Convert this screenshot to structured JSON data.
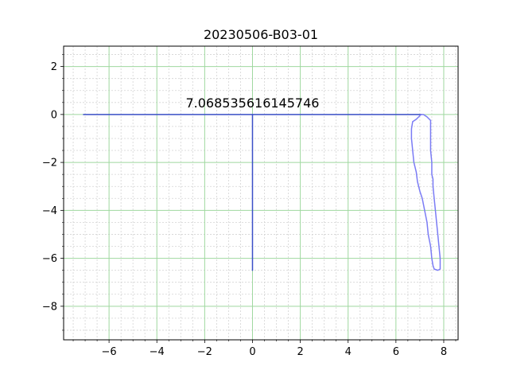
{
  "chart_data": {
    "type": "line",
    "title": "20230506-B03-01",
    "xlabel": "",
    "ylabel": "",
    "xlim": [
      -7.9,
      8.6
    ],
    "ylim": [
      -9.4,
      2.85
    ],
    "x_major_ticks": [
      -6,
      -4,
      -2,
      0,
      2,
      4,
      6,
      8
    ],
    "x_minor_step": 0.5,
    "y_major_ticks": [
      -8,
      -6,
      -4,
      -2,
      0,
      2
    ],
    "y_minor_step": 0.5,
    "grid": true,
    "major_grid_color": "#9fd89f",
    "minor_grid_color": "#d3d3d3",
    "series": [
      {
        "color": "#3b4fc8",
        "points": [
          [
            -7.07,
            0
          ],
          [
            7.07,
            0
          ]
        ]
      },
      {
        "color": "#3b4fc8",
        "points": [
          [
            0,
            0
          ],
          [
            0,
            -6.5
          ]
        ]
      },
      {
        "color": "#7b7cf5",
        "points": [
          [
            6.7,
            -0.3
          ],
          [
            6.65,
            -0.6
          ],
          [
            6.65,
            -1.0
          ],
          [
            6.7,
            -1.5
          ],
          [
            6.75,
            -2.0
          ],
          [
            6.85,
            -2.4
          ],
          [
            6.9,
            -2.8
          ],
          [
            7.0,
            -3.2
          ],
          [
            7.1,
            -3.5
          ],
          [
            7.2,
            -4.0
          ],
          [
            7.3,
            -4.5
          ],
          [
            7.35,
            -5.0
          ],
          [
            7.45,
            -5.5
          ],
          [
            7.5,
            -6.0
          ],
          [
            7.55,
            -6.3
          ],
          [
            7.6,
            -6.45
          ],
          [
            7.75,
            -6.5
          ],
          [
            7.85,
            -6.45
          ],
          [
            7.85,
            -6.0
          ],
          [
            7.8,
            -5.5
          ],
          [
            7.75,
            -5.0
          ],
          [
            7.7,
            -4.5
          ],
          [
            7.65,
            -4.0
          ],
          [
            7.6,
            -3.5
          ],
          [
            7.55,
            -3.0
          ],
          [
            7.55,
            -2.7
          ],
          [
            7.5,
            -2.5
          ],
          [
            7.5,
            -2.0
          ],
          [
            7.45,
            -1.5
          ],
          [
            7.45,
            -1.0
          ],
          [
            7.45,
            -0.5
          ],
          [
            7.45,
            -0.25
          ],
          [
            7.3,
            -0.1
          ],
          [
            7.15,
            0.0
          ],
          [
            7.05,
            0.0
          ],
          [
            6.95,
            -0.1
          ],
          [
            6.85,
            -0.2
          ],
          [
            6.7,
            -0.3
          ]
        ]
      }
    ],
    "annotations": [
      {
        "text": "7.068535616145746",
        "x": 0,
        "y": 0.3
      }
    ]
  }
}
